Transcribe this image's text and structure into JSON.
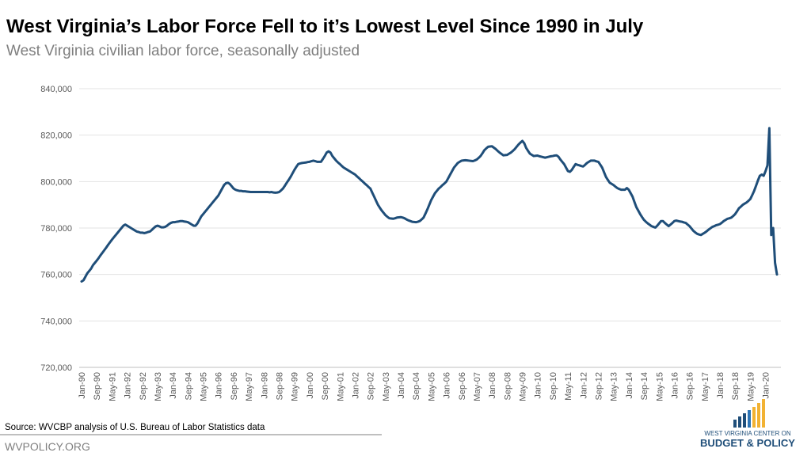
{
  "chart_data": {
    "type": "line",
    "title": "West Virginia’s Labor Force Fell to it’s Lowest Level Since 1990 in July",
    "subtitle": "West Virginia civilian labor force, seasonally adjusted",
    "source": "Source: WVCBP analysis of U.S. Bureau of Labor Statistics data",
    "website": "WVPOLICY.ORG",
    "logo": [
      "WEST VIRGINIA CENTER ON",
      "BUDGET & POLICY"
    ],
    "color": "#1f4e79",
    "grid": true,
    "ylim": [
      720000,
      840000
    ],
    "yticks": [
      {
        "value": 720000,
        "label": "720,000"
      },
      {
        "value": 740000,
        "label": "740,000"
      },
      {
        "value": 760000,
        "label": "760,000"
      },
      {
        "value": 780000,
        "label": "780,000"
      },
      {
        "value": 800000,
        "label": "800,000"
      },
      {
        "value": 820000,
        "label": "820,000"
      },
      {
        "value": 840000,
        "label": "840,000"
      }
    ],
    "categories": [
      "Jan-90",
      null,
      null,
      null,
      null,
      null,
      null,
      null,
      "Sep-90",
      null,
      null,
      null,
      null,
      null,
      null,
      null,
      "May-91",
      null,
      null,
      null,
      null,
      null,
      null,
      null,
      "Jan-92",
      null,
      null,
      null,
      null,
      null,
      null,
      null,
      "Sep-92",
      null,
      null,
      null,
      null,
      null,
      null,
      null,
      "May-93",
      null,
      null,
      null,
      null,
      null,
      null,
      null,
      "Jan-94",
      null,
      null,
      null,
      null,
      null,
      null,
      null,
      "Sep-94",
      null,
      null,
      null,
      null,
      null,
      null,
      null,
      "May-95",
      null,
      null,
      null,
      null,
      null,
      null,
      null,
      "Jan-96",
      null,
      null,
      null,
      null,
      null,
      null,
      null,
      "Sep-96",
      null,
      null,
      null,
      null,
      null,
      null,
      null,
      "May-97",
      null,
      null,
      null,
      null,
      null,
      null,
      null,
      "Jan-98",
      null,
      null,
      null,
      null,
      null,
      null,
      null,
      "Sep-98",
      null,
      null,
      null,
      null,
      null,
      null,
      null,
      "May-99",
      null,
      null,
      null,
      null,
      null,
      null,
      null,
      "Jan-00",
      null,
      null,
      null,
      null,
      null,
      null,
      null,
      "Sep-00",
      null,
      null,
      null,
      null,
      null,
      null,
      null,
      "May-01",
      null,
      null,
      null,
      null,
      null,
      null,
      null,
      "Jan-02",
      null,
      null,
      null,
      null,
      null,
      null,
      null,
      "Sep-02",
      null,
      null,
      null,
      null,
      null,
      null,
      null,
      "May-03",
      null,
      null,
      null,
      null,
      null,
      null,
      null,
      "Jan-04",
      null,
      null,
      null,
      null,
      null,
      null,
      null,
      "Sep-04",
      null,
      null,
      null,
      null,
      null,
      null,
      null,
      "May-05",
      null,
      null,
      null,
      null,
      null,
      null,
      null,
      "Jan-06",
      null,
      null,
      null,
      null,
      null,
      null,
      null,
      "Sep-06",
      null,
      null,
      null,
      null,
      null,
      null,
      null,
      "May-07",
      null,
      null,
      null,
      null,
      null,
      null,
      null,
      "Jan-08",
      null,
      null,
      null,
      null,
      null,
      null,
      null,
      "Sep-08",
      null,
      null,
      null,
      null,
      null,
      null,
      null,
      "May-09",
      null,
      null,
      null,
      null,
      null,
      null,
      null,
      "Jan-10",
      null,
      null,
      null,
      null,
      null,
      null,
      null,
      "Sep-10",
      null,
      null,
      null,
      null,
      null,
      null,
      null,
      "May-11",
      null,
      null,
      null,
      null,
      null,
      null,
      null,
      "Jan-12",
      null,
      null,
      null,
      null,
      null,
      null,
      null,
      "Sep-12",
      null,
      null,
      null,
      null,
      null,
      null,
      null,
      "May-13",
      null,
      null,
      null,
      null,
      null,
      null,
      null,
      "Jan-14",
      null,
      null,
      null,
      null,
      null,
      null,
      null,
      "Sep-14",
      null,
      null,
      null,
      null,
      null,
      null,
      null,
      "May-15",
      null,
      null,
      null,
      null,
      null,
      null,
      null,
      "Jan-16",
      null,
      null,
      null,
      null,
      null,
      null,
      null,
      "Sep-16",
      null,
      null,
      null,
      null,
      null,
      null,
      null,
      "May-17",
      null,
      null,
      null,
      null,
      null,
      null,
      null,
      "Jan-18",
      null,
      null,
      null,
      null,
      null,
      null,
      null,
      "Sep-18",
      null,
      null,
      null,
      null,
      null,
      null,
      null,
      "May-19",
      null,
      null,
      null,
      null,
      null,
      null,
      null,
      "Jan-20",
      null,
      null,
      null,
      null,
      null,
      null
    ],
    "values": [
      757000,
      757500,
      759000,
      760500,
      761500,
      762500,
      764000,
      765000,
      766000,
      767100,
      768300,
      769400,
      770500,
      771600,
      772800,
      773900,
      775000,
      776000,
      777000,
      778000,
      779000,
      780000,
      781000,
      781500,
      781000,
      780500,
      780000,
      779500,
      779000,
      778500,
      778300,
      778000,
      778000,
      777800,
      778000,
      778300,
      778500,
      779200,
      780000,
      780700,
      781000,
      780700,
      780300,
      780300,
      780500,
      781000,
      781700,
      782200,
      782500,
      782500,
      782700,
      782800,
      783000,
      783000,
      782800,
      782700,
      782500,
      782000,
      781500,
      781000,
      781000,
      782000,
      783500,
      785000,
      786000,
      787000,
      788000,
      789000,
      790000,
      791000,
      792000,
      793000,
      794000,
      795500,
      797000,
      798500,
      799300,
      799500,
      799000,
      798000,
      797000,
      796500,
      796200,
      796000,
      796000,
      795800,
      795800,
      795700,
      795600,
      795500,
      795500,
      795500,
      795500,
      795500,
      795500,
      795500,
      795500,
      795500,
      795500,
      795400,
      795500,
      795300,
      795200,
      795300,
      795500,
      796200,
      797000,
      798200,
      799500,
      800700,
      802000,
      803500,
      805000,
      806300,
      807500,
      807800,
      808000,
      808100,
      808200,
      808400,
      808500,
      808800,
      809000,
      808800,
      808500,
      808500,
      808500,
      809700,
      811000,
      812500,
      813000,
      812500,
      811000,
      810000,
      809000,
      808200,
      807500,
      806700,
      806000,
      805500,
      805000,
      804500,
      804000,
      803500,
      803000,
      802200,
      801500,
      800700,
      800000,
      799200,
      798500,
      797700,
      797000,
      795200,
      793500,
      791700,
      790000,
      788700,
      787500,
      786500,
      785500,
      784800,
      784200,
      784100,
      784000,
      784200,
      784500,
      784600,
      784700,
      784500,
      784200,
      783700,
      783300,
      783000,
      782700,
      782600,
      782500,
      782700,
      783000,
      783700,
      784500,
      786200,
      788000,
      790000,
      792000,
      793500,
      795000,
      796000,
      797000,
      797700,
      798500,
      799200,
      800000,
      801500,
      803000,
      804500,
      806000,
      807000,
      808000,
      808500,
      809000,
      809100,
      809200,
      809100,
      809000,
      808900,
      808800,
      809100,
      809500,
      810200,
      811000,
      812200,
      813500,
      814300,
      815000,
      815100,
      815200,
      814600,
      814000,
      813200,
      812500,
      811900,
      811300,
      811400,
      811500,
      812000,
      812500,
      813200,
      814000,
      815000,
      816000,
      816800,
      817500,
      816500,
      814500,
      813200,
      812000,
      811500,
      811000,
      811100,
      811200,
      810900,
      810700,
      810500,
      810300,
      810500,
      810700,
      810900,
      811000,
      811200,
      811300,
      810700,
      809500,
      808500,
      807500,
      806000,
      804500,
      804200,
      805000,
      806300,
      807500,
      807200,
      807000,
      806700,
      806500,
      807200,
      808000,
      808500,
      809000,
      809000,
      809000,
      808700,
      808500,
      807300,
      806000,
      804000,
      802000,
      800700,
      799500,
      799000,
      798500,
      797800,
      797200,
      796800,
      796500,
      796500,
      796500,
      797200,
      796500,
      795000,
      793500,
      791200,
      789000,
      787500,
      786000,
      784700,
      783500,
      782700,
      782000,
      781400,
      780800,
      780500,
      780200,
      781000,
      782000,
      783000,
      783000,
      782200,
      781500,
      780800,
      781500,
      782200,
      783000,
      783200,
      783000,
      782800,
      782700,
      782400,
      782200,
      781500,
      780800,
      779800,
      778800,
      778100,
      777500,
      777200,
      777000,
      777500,
      778000,
      778600,
      779300,
      779900,
      780500,
      780800,
      781200,
      781400,
      781700,
      782300,
      783000,
      783500,
      784000,
      784200,
      784500,
      785200,
      786000,
      787200,
      788500,
      789200,
      790000,
      790500,
      791000,
      791700,
      792500,
      794200,
      796000,
      798200,
      800500,
      802500,
      803000,
      802500,
      804500,
      807000,
      823000,
      777000,
      780000,
      765000,
      760000
    ]
  }
}
